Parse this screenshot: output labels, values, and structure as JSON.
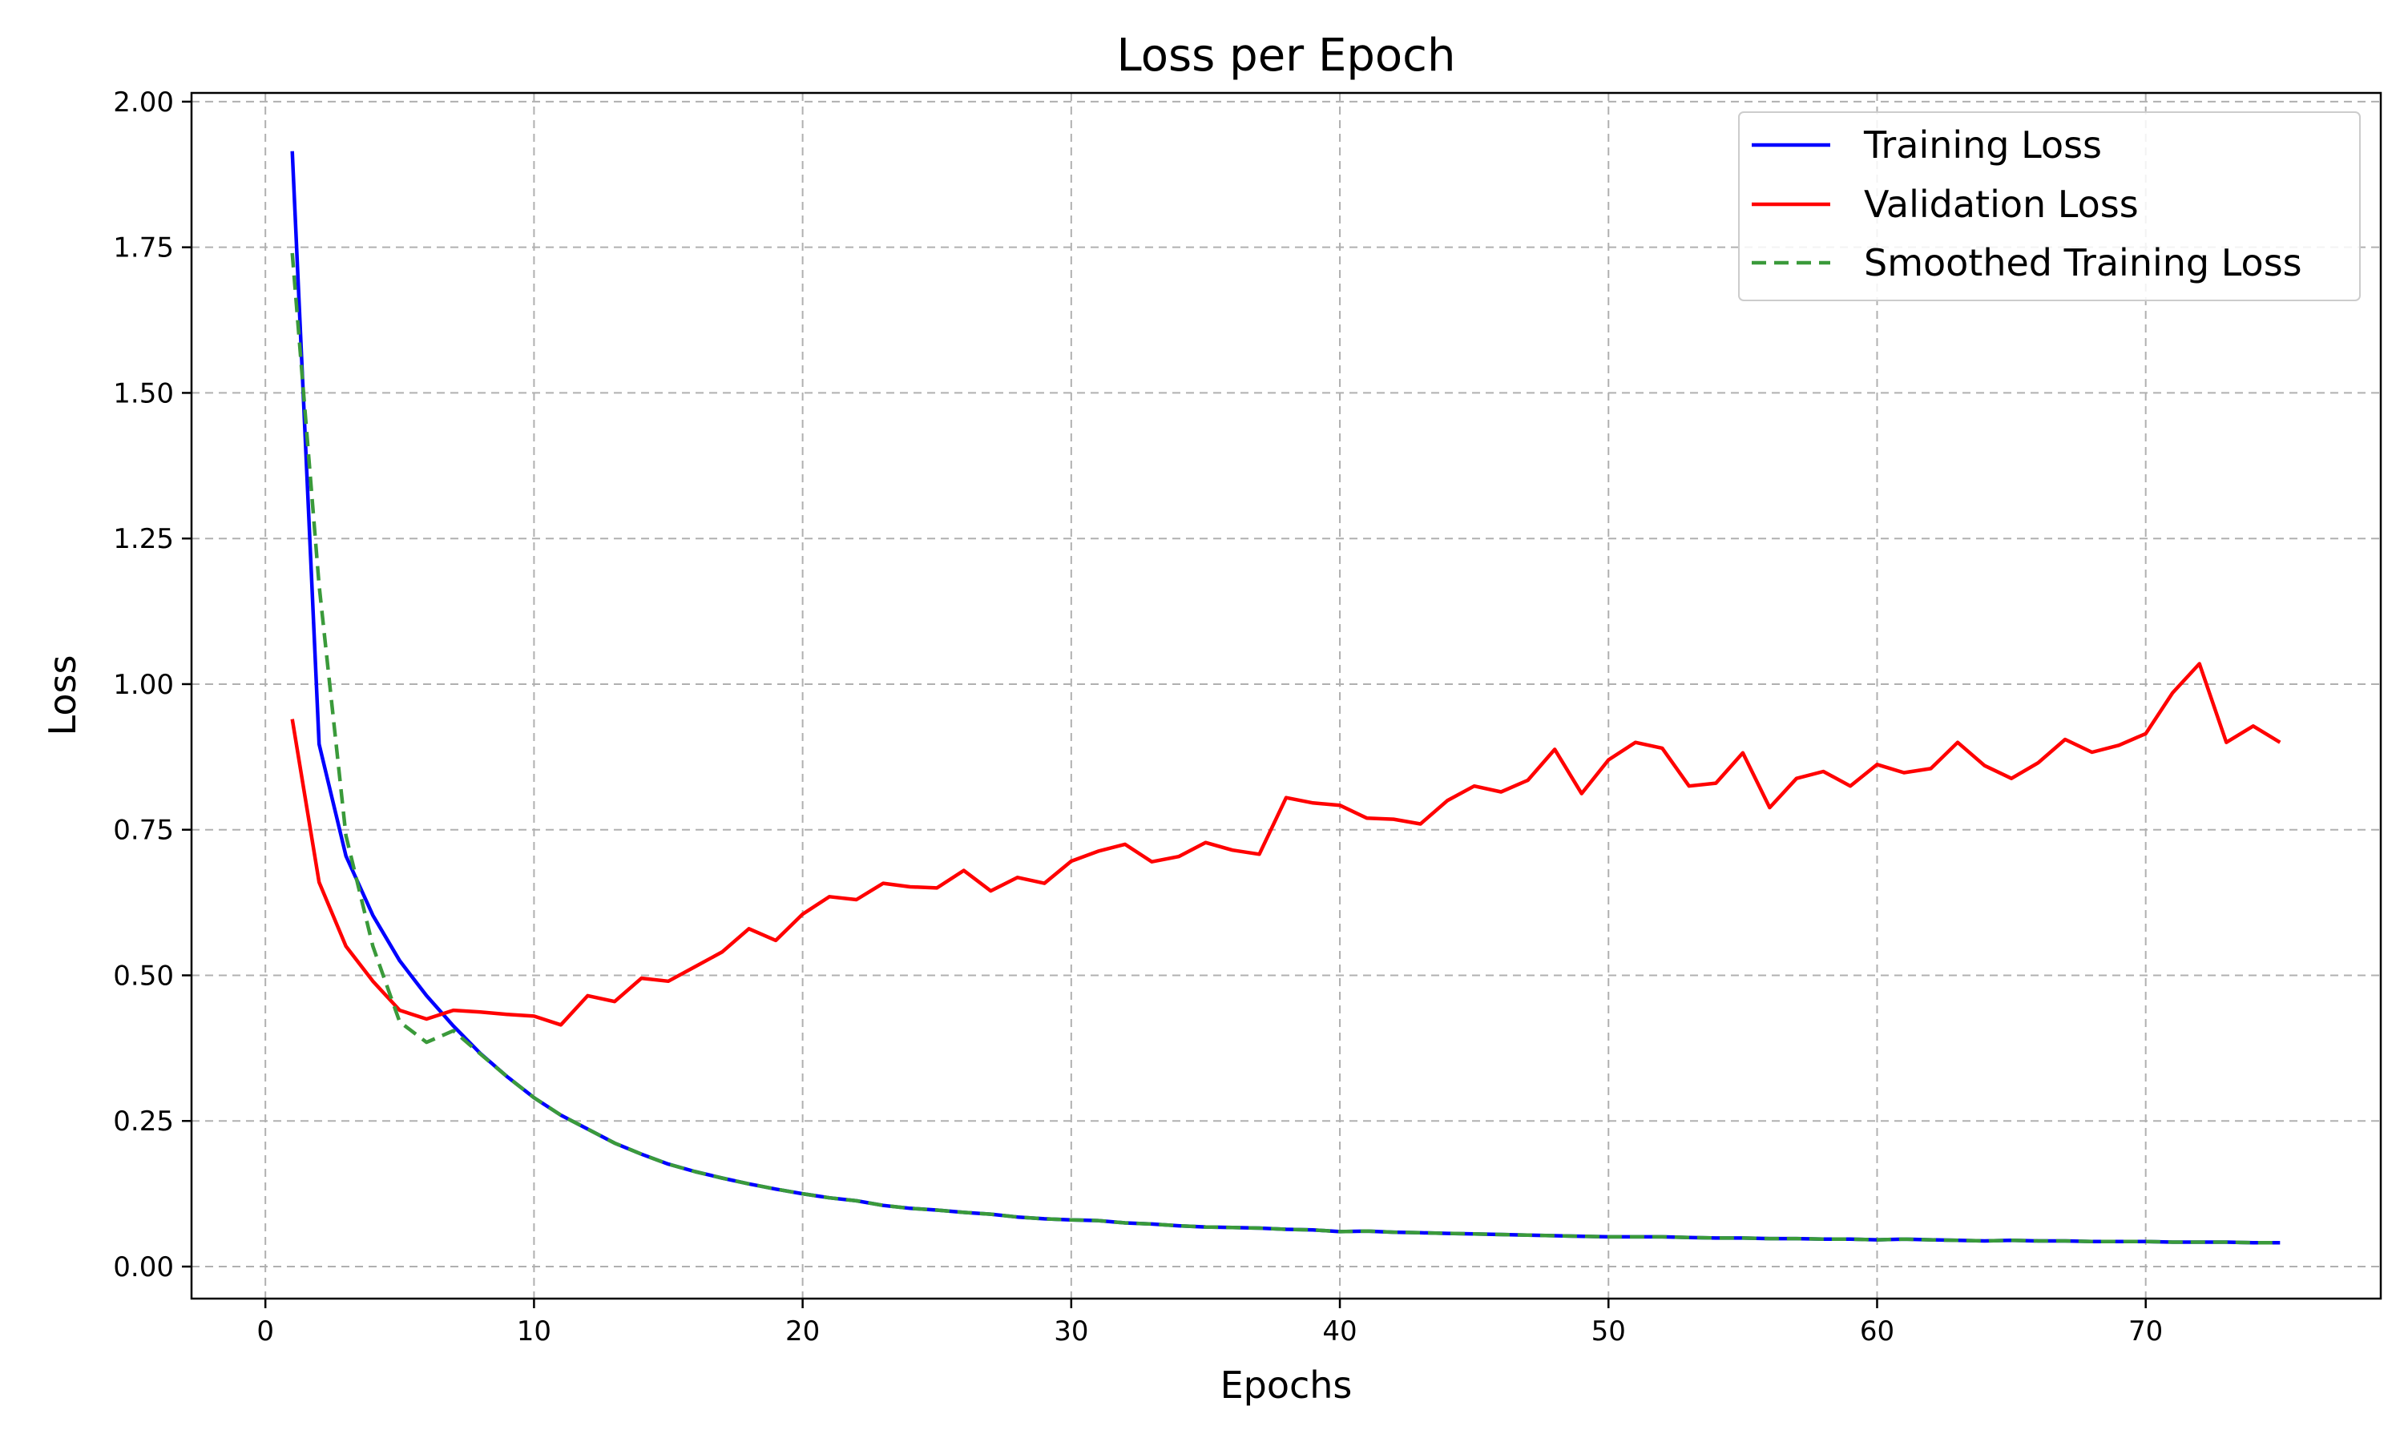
{
  "chart_data": {
    "type": "line",
    "title": "Loss per Epoch",
    "xlabel": "Epochs",
    "ylabel": "Loss",
    "xlim": [
      -2.75,
      78.75
    ],
    "ylim": [
      -0.055,
      2.015
    ],
    "xticks": [
      0,
      10,
      20,
      30,
      40,
      50,
      60,
      70
    ],
    "xtick_labels": [
      "0",
      "10",
      "20",
      "30",
      "40",
      "50",
      "60",
      "70"
    ],
    "yticks": [
      0.0,
      0.25,
      0.5,
      0.75,
      1.0,
      1.25,
      1.5,
      1.75,
      2.0
    ],
    "ytick_labels": [
      "0.00",
      "0.25",
      "0.50",
      "0.75",
      "1.00",
      "1.25",
      "1.50",
      "1.75",
      "2.00"
    ],
    "grid": true,
    "legend_position": "top-right",
    "x": [
      1,
      2,
      3,
      4,
      5,
      6,
      7,
      8,
      9,
      10,
      11,
      12,
      13,
      14,
      15,
      16,
      17,
      18,
      19,
      20,
      21,
      22,
      23,
      24,
      25,
      26,
      27,
      28,
      29,
      30,
      31,
      32,
      33,
      34,
      35,
      36,
      37,
      38,
      39,
      40,
      41,
      42,
      43,
      44,
      45,
      46,
      47,
      48,
      49,
      50,
      51,
      52,
      53,
      54,
      55,
      56,
      57,
      58,
      59,
      60,
      61,
      62,
      63,
      64,
      65,
      66,
      67,
      68,
      69,
      70,
      71,
      72,
      73,
      74,
      75
    ],
    "series": [
      {
        "name": "Training Loss",
        "color": "#0000ff",
        "style": "solid",
        "values": [
          1.915,
          0.897,
          0.705,
          0.603,
          0.525,
          0.465,
          0.413,
          0.366,
          0.326,
          0.29,
          0.26,
          0.236,
          0.212,
          0.193,
          0.176,
          0.163,
          0.152,
          0.142,
          0.133,
          0.125,
          0.118,
          0.113,
          0.105,
          0.1,
          0.097,
          0.093,
          0.09,
          0.085,
          0.082,
          0.08,
          0.079,
          0.075,
          0.073,
          0.07,
          0.068,
          0.067,
          0.066,
          0.064,
          0.063,
          0.06,
          0.061,
          0.059,
          0.058,
          0.057,
          0.056,
          0.055,
          0.054,
          0.053,
          0.052,
          0.051,
          0.051,
          0.051,
          0.05,
          0.049,
          0.049,
          0.048,
          0.048,
          0.047,
          0.047,
          0.046,
          0.047,
          0.046,
          0.045,
          0.044,
          0.045,
          0.044,
          0.044,
          0.043,
          0.043,
          0.043,
          0.042,
          0.042,
          0.042,
          0.041,
          0.041
        ]
      },
      {
        "name": "Validation Loss",
        "color": "#ff0000",
        "style": "solid",
        "values": [
          0.94,
          0.66,
          0.55,
          0.49,
          0.44,
          0.425,
          0.44,
          0.437,
          0.433,
          0.43,
          0.415,
          0.465,
          0.455,
          0.495,
          0.49,
          0.515,
          0.54,
          0.58,
          0.56,
          0.605,
          0.635,
          0.63,
          0.658,
          0.652,
          0.65,
          0.68,
          0.645,
          0.668,
          0.658,
          0.696,
          0.713,
          0.725,
          0.695,
          0.704,
          0.728,
          0.715,
          0.708,
          0.805,
          0.796,
          0.792,
          0.77,
          0.768,
          0.76,
          0.8,
          0.825,
          0.815,
          0.835,
          0.888,
          0.812,
          0.87,
          0.9,
          0.89,
          0.825,
          0.83,
          0.882,
          0.788,
          0.838,
          0.85,
          0.825,
          0.862,
          0.848,
          0.855,
          0.9,
          0.86,
          0.838,
          0.865,
          0.905,
          0.883,
          0.895,
          0.915,
          0.985,
          1.035,
          0.9,
          0.928,
          0.9
        ]
      },
      {
        "name": "Smoothed Training Loss",
        "color": "#3a9a3a",
        "style": "dashed",
        "values": [
          1.74,
          1.17,
          0.74,
          0.55,
          0.42,
          0.385,
          0.405,
          0.365,
          0.326,
          0.29,
          0.26,
          0.236,
          0.212,
          0.193,
          0.176,
          0.163,
          0.152,
          0.142,
          0.133,
          0.125,
          0.118,
          0.113,
          0.105,
          0.1,
          0.097,
          0.093,
          0.09,
          0.085,
          0.082,
          0.08,
          0.079,
          0.075,
          0.073,
          0.07,
          0.068,
          0.067,
          0.066,
          0.064,
          0.063,
          0.06,
          0.061,
          0.059,
          0.058,
          0.057,
          0.056,
          0.055,
          0.054,
          0.053,
          0.052,
          0.051,
          0.051,
          0.051,
          0.05,
          0.049,
          0.049,
          0.048,
          0.048,
          0.047,
          0.047,
          0.046,
          0.047,
          0.046,
          0.045,
          0.044,
          0.045,
          0.044,
          0.044,
          0.043,
          0.043,
          0.043,
          0.042,
          0.042,
          0.042,
          0.041,
          0.041
        ]
      }
    ]
  }
}
